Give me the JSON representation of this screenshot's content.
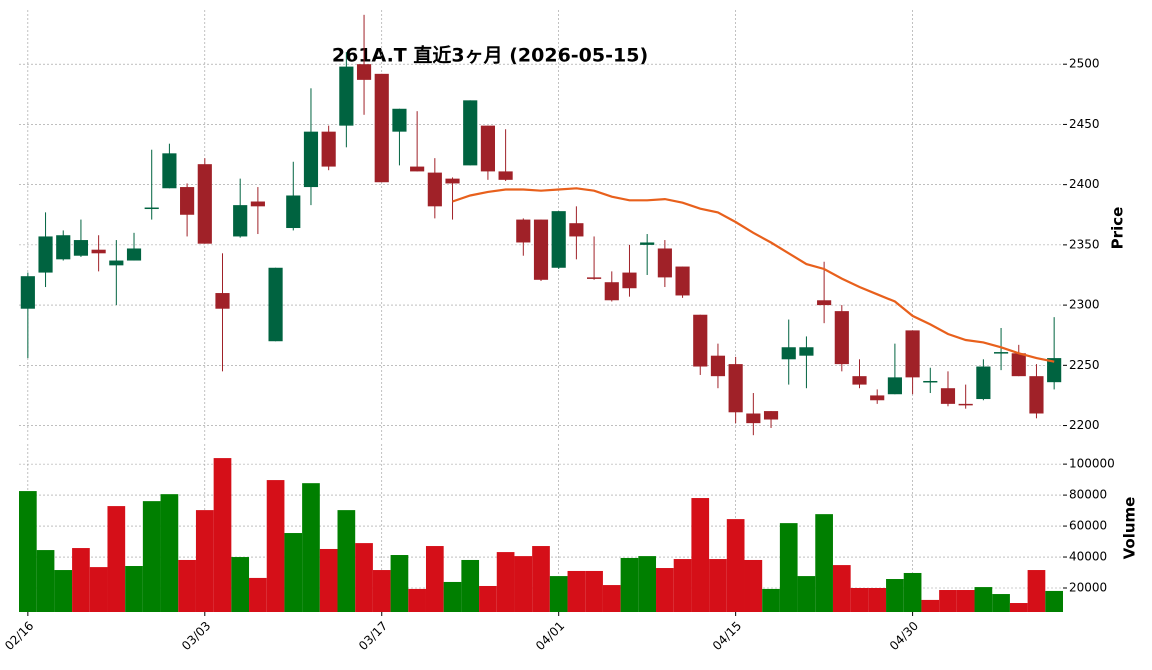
{
  "chart_data": {
    "type": "candlestick",
    "title": "261A.T  直近3ヶ月  (2026-05-15)",
    "ylabel": "Price",
    "volume_ylabel": "Volume",
    "categories": [
      "02/16",
      null,
      null,
      null,
      null,
      null,
      null,
      null,
      null,
      null,
      "03/03",
      null,
      null,
      null,
      null,
      null,
      null,
      null,
      null,
      null,
      "03/17",
      null,
      null,
      null,
      null,
      null,
      null,
      null,
      null,
      null,
      "04/01",
      null,
      null,
      null,
      null,
      null,
      null,
      null,
      null,
      null,
      "04/15",
      null,
      null,
      null,
      null,
      null,
      null,
      null,
      null,
      null,
      "04/30",
      null,
      null,
      null,
      null,
      null,
      null,
      null,
      null
    ],
    "open": [
      2297,
      2327,
      2338,
      2341,
      2346,
      2333,
      2337,
      2380,
      2397,
      2398,
      2417,
      2310,
      2357,
      2386,
      2270,
      2364,
      2398,
      2444,
      2449,
      2500,
      2492,
      2444,
      2415,
      2410,
      2405,
      2416,
      2449,
      2411,
      2371,
      2371,
      2331,
      2368,
      2323,
      2319,
      2327,
      2350,
      2347,
      2332,
      2292,
      2258,
      2251,
      2210,
      2212,
      2255,
      2258,
      2304,
      2295,
      2241,
      2225,
      2226,
      2279,
      2236,
      2231,
      2218,
      2222,
      2260,
      2260,
      2241,
      2236
    ],
    "high": [
      2327,
      2377,
      2362,
      2371,
      2358,
      2354,
      2360,
      2429,
      2434,
      2401,
      2422,
      2343,
      2405,
      2398,
      2331,
      2419,
      2480,
      2449,
      2510,
      2541,
      2492,
      2463,
      2461,
      2422,
      2406,
      2470,
      2449,
      2446,
      2372,
      2371,
      2378,
      2382,
      2357,
      2328,
      2350,
      2359,
      2354,
      2332,
      2292,
      2268,
      2257,
      2227,
      2212,
      2288,
      2274,
      2336,
      2300,
      2255,
      2230,
      2268,
      2279,
      2248,
      2245,
      2234,
      2255,
      2281,
      2267,
      2251,
      2290
    ],
    "low": [
      2256,
      2315,
      2337,
      2340,
      2328,
      2300,
      2337,
      2371,
      2397,
      2357,
      2351,
      2245,
      2356,
      2359,
      2270,
      2362,
      2383,
      2412,
      2431,
      2458,
      2402,
      2416,
      2411,
      2372,
      2371,
      2416,
      2404,
      2403,
      2341,
      2320,
      2330,
      2338,
      2321,
      2303,
      2307,
      2325,
      2315,
      2306,
      2242,
      2231,
      2202,
      2192,
      2198,
      2234,
      2231,
      2285,
      2245,
      2231,
      2218,
      2226,
      2226,
      2227,
      2216,
      2214,
      2221,
      2246,
      2241,
      2206,
      2230
    ],
    "close": [
      2324,
      2357,
      2358,
      2354,
      2343,
      2337,
      2347,
      2381,
      2426,
      2375,
      2351,
      2297,
      2383,
      2382,
      2331,
      2391,
      2444,
      2415,
      2498,
      2487,
      2402,
      2463,
      2411,
      2382,
      2401,
      2470,
      2411,
      2404,
      2352,
      2321,
      2378,
      2357,
      2322,
      2304,
      2314,
      2352,
      2323,
      2308,
      2249,
      2241,
      2211,
      2202,
      2205,
      2265,
      2265,
      2300,
      2251,
      2234,
      2221,
      2240,
      2240,
      2237,
      2218,
      2217,
      2249,
      2261,
      2241,
      2210,
      2256
    ],
    "ma_values": [
      null,
      null,
      null,
      null,
      null,
      null,
      null,
      null,
      null,
      null,
      null,
      null,
      null,
      null,
      null,
      null,
      null,
      null,
      null,
      null,
      null,
      null,
      null,
      null,
      2386,
      2391,
      2394,
      2396,
      2396,
      2395,
      2396,
      2397,
      2395,
      2390,
      2387,
      2387,
      2388,
      2385,
      2380,
      2377,
      2369,
      2360,
      2352,
      2343,
      2334,
      2330,
      2322,
      2315,
      2309,
      2303,
      2291,
      2284,
      2276,
      2271,
      2269,
      2265,
      2260,
      2256,
      2253
    ],
    "volume": [
      82600,
      44500,
      31600,
      45800,
      33500,
      72900,
      34200,
      76100,
      80600,
      38100,
      70300,
      103900,
      40000,
      26500,
      89700,
      55500,
      87700,
      45200,
      70300,
      49000,
      31600,
      41300,
      19400,
      47100,
      23900,
      38100,
      21300,
      43200,
      40600,
      47100,
      27700,
      31000,
      31000,
      21900,
      39400,
      40600,
      32900,
      38700,
      78100,
      38700,
      64500,
      38100,
      19400,
      61900,
      27700,
      67700,
      34800,
      20000,
      20000,
      25800,
      29700,
      12300,
      18700,
      18700,
      20600,
      16100,
      10300,
      31600,
      18100
    ],
    "ylim": [
      2188,
      2545
    ],
    "yticks": [
      2200,
      2250,
      2300,
      2350,
      2400,
      2450,
      2500
    ],
    "volume_ylim": [
      4500,
      113000
    ],
    "volume_yticks": [
      20000,
      40000,
      60000,
      80000,
      100000
    ],
    "up_color": "#006340",
    "down_color": "#a02128",
    "volume_up_color": "#007f00",
    "volume_down_color": "#d50f18",
    "ma_color": "#e8601c",
    "grid": true
  }
}
